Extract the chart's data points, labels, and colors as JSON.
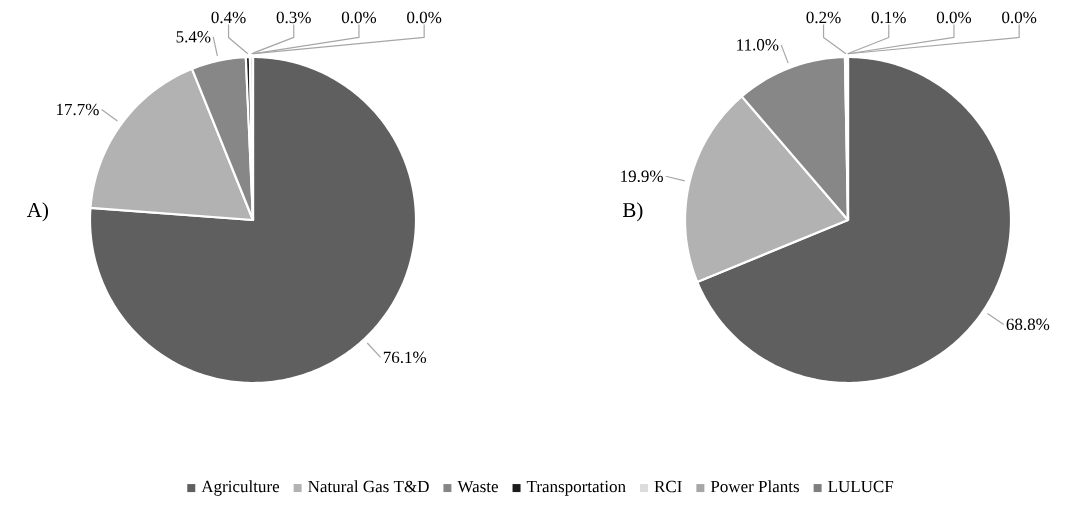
{
  "chart_data": [
    {
      "type": "pie",
      "title": "A)",
      "categories": [
        "Agriculture",
        "Natural Gas T&D",
        "Waste",
        "Transportation",
        "RCI",
        "Power Plants",
        "LULUCF"
      ],
      "values": [
        76.1,
        17.7,
        5.4,
        0.4,
        0.3,
        0.0,
        0.0
      ],
      "value_labels": [
        "76.1%",
        "17.7%",
        "5.4%",
        "0.4%",
        "0.3%",
        "0.0%",
        "0.0%"
      ],
      "colors": [
        "#5f5f5f",
        "#b2b2b2",
        "#878787",
        "#1c1c1c",
        "#dcdcdc",
        "#a6a6a6",
        "#7f7f7f"
      ],
      "legend": "bottom"
    },
    {
      "type": "pie",
      "title": "B)",
      "categories": [
        null,
        null,
        null,
        null,
        null,
        null,
        null
      ],
      "values": [
        68.8,
        19.9,
        11.0,
        0.2,
        0.1,
        0.0,
        0.0
      ],
      "value_labels": [
        "68.8%",
        "19.9%",
        "11.0%",
        "0.2%",
        "0.1%",
        "0.0%",
        "0.0%"
      ],
      "colors": [
        "#5f5f5f",
        "#b2b2b2",
        "#878787",
        "#1c1c1c",
        "#dcdcdc",
        "#a6a6a6",
        "#7f7f7f"
      ]
    }
  ]
}
